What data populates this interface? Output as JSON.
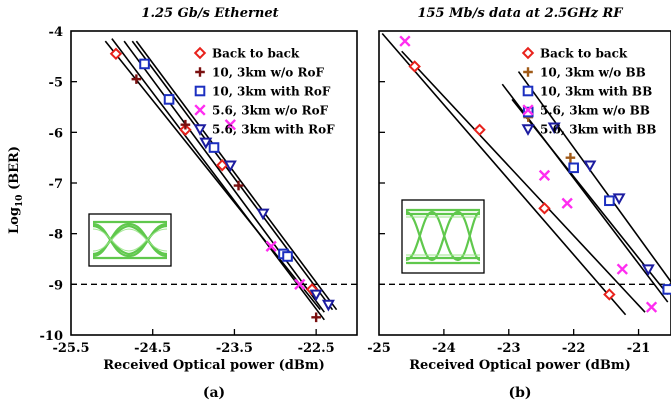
{
  "figure": {
    "ylabel_main": "Log",
    "ylabel_sub": "10",
    "ylabel_tail": " (BER)"
  },
  "chart_data": [
    {
      "type": "scatter",
      "panel_label": "(a)",
      "title": "1.25 Gb/s Ethernet",
      "xlabel": "Received Optical power (dBm)",
      "ylabel": "Log 10 (BER)",
      "xlim": [
        -25.5,
        -22.0
      ],
      "ylim": [
        -10,
        -4
      ],
      "xticks": [
        -25.5,
        -24.5,
        -23.5,
        -22.5
      ],
      "xtick_labels": [
        "-25.5",
        "-24.5",
        "-23.5",
        "-22.5"
      ],
      "yticks": [
        -4,
        -5,
        -6,
        -7,
        -8,
        -9,
        -10
      ],
      "ytick_labels": [
        "-4",
        "-5",
        "-6",
        "-7",
        "-8",
        "-9",
        "-10"
      ],
      "threshold": -9,
      "legend_position": "top-right",
      "series": [
        {
          "name": "Back to back",
          "marker": "diamond",
          "color": "#e8221c",
          "x": [
            -24.95,
            -24.1,
            -23.65,
            -22.55
          ],
          "y": [
            -4.45,
            -5.95,
            -6.65,
            -9.1
          ],
          "fit": [
            [
              -25.08,
              -4.2
            ],
            [
              -22.45,
              -9.5
            ]
          ]
        },
        {
          "name": "10, 3km w/o RoF",
          "marker": "plus",
          "color": "#7a1010",
          "x": [
            -24.7,
            -24.1,
            -23.45,
            -22.5
          ],
          "y": [
            -4.95,
            -5.85,
            -7.05,
            -9.65
          ],
          "fit": [
            [
              -25.0,
              -4.15
            ],
            [
              -22.4,
              -9.7
            ]
          ]
        },
        {
          "name": "10, 3km with RoF",
          "marker": "square",
          "color": "#1c2fc0",
          "x": [
            -24.6,
            -24.3,
            -23.75,
            -22.9,
            -22.85
          ],
          "y": [
            -4.65,
            -5.35,
            -6.3,
            -8.4,
            -8.45
          ],
          "fit": [
            [
              -24.85,
              -4.2
            ],
            [
              -22.4,
              -9.55
            ]
          ]
        },
        {
          "name": "5.6, 3km w/o RoF",
          "marker": "x",
          "color": "#ff2df0",
          "x": [
            -23.55,
            -23.05,
            -22.7
          ],
          "y": [
            -5.85,
            -8.25,
            -9.0
          ],
          "fit": [
            [
              -24.75,
              -4.2
            ],
            [
              -22.3,
              -9.5
            ]
          ]
        },
        {
          "name": "5.6, 3km with RoF",
          "marker": "triangle",
          "color": "#1c1ca0",
          "x": [
            -23.85,
            -23.55,
            -23.15,
            -22.5,
            -22.35
          ],
          "y": [
            -6.2,
            -6.65,
            -7.6,
            -9.2,
            -9.4
          ],
          "fit": [
            [
              -24.7,
              -4.2
            ],
            [
              -22.25,
              -9.5
            ]
          ]
        }
      ],
      "inset": "eye-diagram"
    },
    {
      "type": "scatter",
      "panel_label": "(b)",
      "title": "155 Mb/s data at 2.5GHz RF",
      "xlabel": "Received Optical power (dBm)",
      "xlim": [
        -25,
        -20.5
      ],
      "ylim": [
        -10,
        -4
      ],
      "xticks": [
        -25,
        -24,
        -23,
        -22,
        -21
      ],
      "xtick_labels": [
        "-25",
        "-24",
        "-23",
        "-22",
        "-21"
      ],
      "threshold": -9,
      "legend_position": "top-right",
      "series": [
        {
          "name": "Back to back",
          "marker": "diamond",
          "color": "#e8221c",
          "x": [
            -24.45,
            -23.45,
            -22.45,
            -21.45
          ],
          "y": [
            -4.7,
            -5.95,
            -7.5,
            -9.2
          ],
          "fit": [
            [
              -24.95,
              -4.05
            ],
            [
              -21.2,
              -9.6
            ]
          ]
        },
        {
          "name": "10, 3km w/o BB",
          "marker": "plus",
          "color": "#a05a18",
          "x": [
            -22.7,
            -22.05
          ],
          "y": [
            -5.7,
            -6.5
          ],
          "fit": [
            [
              -22.95,
              -5.35
            ],
            [
              -20.55,
              -9.2
            ]
          ]
        },
        {
          "name": "10, 3km with BB",
          "marker": "square",
          "color": "#1c2fc0",
          "x": [
            -22.7,
            -22.0,
            -21.45,
            -20.55
          ],
          "y": [
            -5.6,
            -6.7,
            -7.35,
            -9.1
          ],
          "fit": [
            [
              -23.1,
              -5.05
            ],
            [
              -20.55,
              -9.35
            ]
          ]
        },
        {
          "name": "5.6, 3km w/o BB",
          "marker": "x",
          "color": "#ff2df0",
          "x": [
            -24.6,
            -22.45,
            -22.1,
            -21.25,
            -20.8
          ],
          "y": [
            -4.2,
            -6.85,
            -7.4,
            -8.7,
            -9.45
          ],
          "fit": [
            [
              -24.65,
              -4.4
            ],
            [
              -20.9,
              -9.55
            ]
          ]
        },
        {
          "name": "5.6, 3km with BB",
          "marker": "triangle",
          "color": "#1c1ca0",
          "x": [
            -22.3,
            -21.75,
            -21.3,
            -20.85
          ],
          "y": [
            -5.9,
            -6.65,
            -7.3,
            -8.7
          ],
          "fit": [
            [
              -22.85,
              -4.8
            ],
            [
              -20.5,
              -8.95
            ]
          ]
        }
      ],
      "inset": "eye-diagram"
    }
  ]
}
